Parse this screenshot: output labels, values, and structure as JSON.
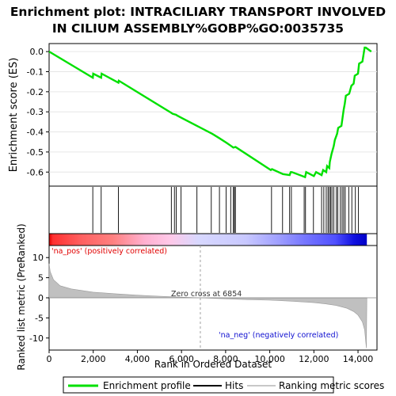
{
  "chart_data": {
    "type": "line",
    "title_lines": [
      "Enrichment plot: INTRACILIARY TRANSPORT INVOLVED",
      "IN CILIUM ASSEMBLY%GOBP%GO:0035735"
    ],
    "es_panel": {
      "ylabel": "Enrichment score (ES)",
      "ylim": [
        -0.67,
        0.04
      ],
      "yticks": [
        "0.0",
        "-0.1",
        "-0.2",
        "-0.3",
        "-0.4",
        "-0.5",
        "-0.6"
      ],
      "ytick_values": [
        0.0,
        -0.1,
        -0.2,
        -0.3,
        -0.4,
        -0.5,
        -0.6
      ],
      "color": "#00e000",
      "points": [
        [
          0,
          0.0
        ],
        [
          1980,
          -0.13
        ],
        [
          2000,
          -0.11
        ],
        [
          2360,
          -0.13
        ],
        [
          2380,
          -0.11
        ],
        [
          3140,
          -0.155
        ],
        [
          3160,
          -0.145
        ],
        [
          5540,
          -0.305
        ],
        [
          5600,
          -0.31
        ],
        [
          5760,
          -0.315
        ],
        [
          5800,
          -0.318
        ],
        [
          6000,
          -0.33
        ],
        [
          6700,
          -0.37
        ],
        [
          7400,
          -0.41
        ],
        [
          7700,
          -0.43
        ],
        [
          8050,
          -0.455
        ],
        [
          8250,
          -0.47
        ],
        [
          8350,
          -0.478
        ],
        [
          8450,
          -0.475
        ],
        [
          10050,
          -0.59
        ],
        [
          10100,
          -0.585
        ],
        [
          10600,
          -0.61
        ],
        [
          10900,
          -0.615
        ],
        [
          10950,
          -0.6
        ],
        [
          11000,
          -0.6
        ],
        [
          11600,
          -0.625
        ],
        [
          11650,
          -0.6
        ],
        [
          12000,
          -0.62
        ],
        [
          12100,
          -0.6
        ],
        [
          12350,
          -0.615
        ],
        [
          12420,
          -0.59
        ],
        [
          12560,
          -0.6
        ],
        [
          12600,
          -0.57
        ],
        [
          12700,
          -0.58
        ],
        [
          12720,
          -0.55
        ],
        [
          12800,
          -0.51
        ],
        [
          12900,
          -0.47
        ],
        [
          12950,
          -0.44
        ],
        [
          13050,
          -0.41
        ],
        [
          13100,
          -0.38
        ],
        [
          13250,
          -0.37
        ],
        [
          13300,
          -0.33
        ],
        [
          13350,
          -0.29
        ],
        [
          13400,
          -0.26
        ],
        [
          13450,
          -0.22
        ],
        [
          13600,
          -0.21
        ],
        [
          13700,
          -0.17
        ],
        [
          13800,
          -0.16
        ],
        [
          13850,
          -0.12
        ],
        [
          14000,
          -0.11
        ],
        [
          14050,
          -0.06
        ],
        [
          14200,
          -0.05
        ],
        [
          14300,
          0.02
        ],
        [
          14350,
          0.02
        ],
        [
          14600,
          0.0
        ]
      ]
    },
    "hits": [
      1980,
      2360,
      3140,
      5540,
      5680,
      5760,
      5980,
      6700,
      7350,
      7720,
      8020,
      8230,
      8350,
      8400,
      8440,
      10080,
      10580,
      10900,
      10980,
      11560,
      11620,
      11980,
      12350,
      12450,
      12560,
      12640,
      12700,
      12760,
      12820,
      12900,
      13020,
      13080,
      13200,
      13280,
      13350,
      13420,
      13580,
      13720,
      13880,
      14020
    ],
    "ranking_bar": {
      "stops": [
        {
          "pos": 0.0,
          "color": "#e00000"
        },
        {
          "pos": 0.012,
          "color": "#ff3030"
        },
        {
          "pos": 0.1,
          "color": "#ff6060"
        },
        {
          "pos": 0.2,
          "color": "#ff8080"
        },
        {
          "pos": 0.3,
          "color": "#ffb0d0"
        },
        {
          "pos": 0.38,
          "color": "#ffc8e8"
        },
        {
          "pos": 0.47,
          "color": "#d8d8ff"
        },
        {
          "pos": 0.62,
          "color": "#c8c8ff"
        },
        {
          "pos": 0.72,
          "color": "#a0a0ff"
        },
        {
          "pos": 0.8,
          "color": "#7878ff"
        },
        {
          "pos": 0.9,
          "color": "#5050ff"
        },
        {
          "pos": 0.96,
          "color": "#1010e0"
        },
        {
          "pos": 1.0,
          "color": "#0000c8"
        }
      ]
    },
    "metric_panel": {
      "ylabel": "Ranked list metric (PreRanked)",
      "ylim": [
        -13,
        13
      ],
      "yticks": [
        "10",
        "5",
        "0",
        "-5",
        "-10"
      ],
      "ytick_values": [
        10,
        5,
        0,
        -5,
        -10
      ],
      "profile": [
        [
          0,
          8.5
        ],
        [
          50,
          6.5
        ],
        [
          200,
          4.5
        ],
        [
          500,
          3.0
        ],
        [
          1000,
          2.2
        ],
        [
          2000,
          1.4
        ],
        [
          3000,
          1.0
        ],
        [
          4000,
          0.65
        ],
        [
          5000,
          0.4
        ],
        [
          6000,
          0.15
        ],
        [
          6854,
          0.0
        ],
        [
          8000,
          -0.25
        ],
        [
          9000,
          -0.45
        ],
        [
          10000,
          -0.6
        ],
        [
          11000,
          -0.85
        ],
        [
          12000,
          -1.2
        ],
        [
          12500,
          -1.5
        ],
        [
          13000,
          -1.9
        ],
        [
          13500,
          -2.6
        ],
        [
          13800,
          -3.4
        ],
        [
          14000,
          -4.3
        ],
        [
          14200,
          -6.0
        ],
        [
          14300,
          -8.0
        ],
        [
          14380,
          -12.5
        ],
        [
          14400,
          0.0
        ]
      ],
      "zero_cross": 6854,
      "zero_cross_label": "Zero cross at 6854",
      "pos_label": "'na_pos' (positively correlated)",
      "neg_label": "'na_neg' (negatively correlated)",
      "pos_color": "#e00000",
      "neg_color": "#1010d0"
    },
    "x_axis": {
      "label": "Rank in Ordered Dataset",
      "xlim": [
        0,
        14860
      ],
      "ticks": [
        "0",
        "2,000",
        "4,000",
        "6,000",
        "8,000",
        "10,000",
        "12,000",
        "14,000"
      ],
      "tick_values": [
        0,
        2000,
        4000,
        6000,
        8000,
        10000,
        12000,
        14000
      ]
    },
    "legend": {
      "entries": [
        {
          "label": "Enrichment profile",
          "color": "#00e000"
        },
        {
          "label": "Hits",
          "color": "#000000"
        },
        {
          "label": "Ranking metric scores",
          "color": "#c8c8c8"
        }
      ]
    }
  }
}
